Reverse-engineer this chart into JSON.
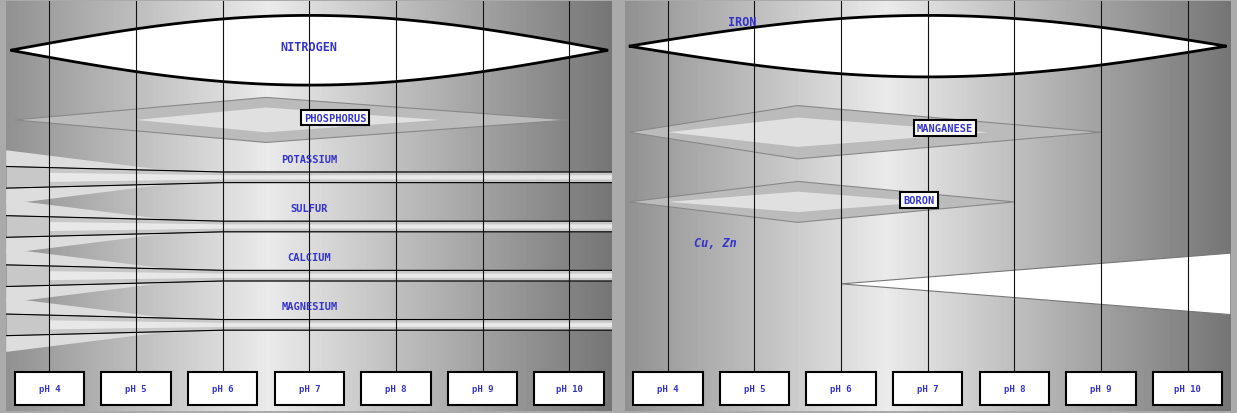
{
  "ph_values": [
    "pH 4",
    "pH 5",
    "pH 6",
    "pH 7",
    "pH 8",
    "pH 9",
    "pH 10"
  ],
  "text_color": "#3333CC",
  "bg_light": "#E8E8E8",
  "bg_dark": "#AAAAAA",
  "stripe_colors": [
    "#BBBBBB",
    "#C8C8C8",
    "#D8D8D8",
    "#E0E0E0",
    "#D0D0D0",
    "#C0C0C0",
    "#B0B0B0"
  ],
  "n_stripes": 40,
  "vline_color": "#111111"
}
